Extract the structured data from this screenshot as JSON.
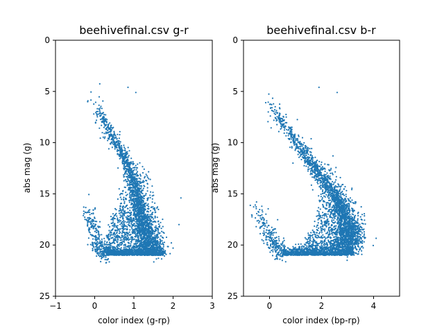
{
  "chart_data": [
    {
      "type": "scatter",
      "title": "beehivefinal.csv g-r",
      "xlabel": "color index (g-rp)",
      "ylabel": "abs mag (g)",
      "xlim": [
        -1,
        3
      ],
      "ylim": [
        25,
        0
      ],
      "y_inverted": true,
      "xticks": [
        -1,
        0,
        1,
        2,
        3
      ],
      "yticks": [
        0,
        5,
        10,
        15,
        20,
        25
      ],
      "grid": false,
      "color": "#1f77b4",
      "features": {
        "main_sequence": [
          [
            0.0,
            6.0
          ],
          [
            0.2,
            7.6
          ],
          [
            0.4,
            9.0
          ],
          [
            0.6,
            10.4
          ],
          [
            0.8,
            11.8
          ],
          [
            0.95,
            13.4
          ],
          [
            1.05,
            14.8
          ],
          [
            1.15,
            16.2
          ],
          [
            1.22,
            17.5
          ],
          [
            1.3,
            18.8
          ],
          [
            1.38,
            20.0
          ],
          [
            1.45,
            20.8
          ]
        ],
        "white_dwarf_branch": [
          [
            -0.2,
            16.0
          ],
          [
            -0.1,
            17.5
          ],
          [
            0.0,
            19.0
          ],
          [
            0.1,
            20.2
          ],
          [
            0.3,
            20.8
          ]
        ],
        "bottom_cutoff": 21.0,
        "outliers": [
          [
            0.85,
            4.6
          ],
          [
            1.05,
            5.1
          ],
          [
            2.2,
            15.4
          ],
          [
            2.15,
            18.0
          ],
          [
            2.0,
            20.3
          ]
        ]
      }
    },
    {
      "type": "scatter",
      "title": "beehivefinal.csv b-r",
      "xlabel": "color index (bp-rp)",
      "ylabel": "abs mag (g)",
      "xlim": [
        -1,
        5
      ],
      "ylim": [
        25,
        0
      ],
      "y_inverted": true,
      "xticks": [
        0,
        2,
        4
      ],
      "yticks": [
        0,
        5,
        10,
        15,
        20,
        25
      ],
      "grid": false,
      "color": "#1f77b4",
      "features": {
        "main_sequence": [
          [
            0.0,
            6.0
          ],
          [
            0.4,
            7.6
          ],
          [
            0.8,
            9.0
          ],
          [
            1.2,
            10.6
          ],
          [
            1.6,
            12.0
          ],
          [
            2.0,
            13.4
          ],
          [
            2.4,
            14.8
          ],
          [
            2.7,
            16.2
          ],
          [
            2.95,
            17.5
          ],
          [
            3.1,
            18.6
          ],
          [
            3.0,
            19.6
          ],
          [
            2.8,
            20.4
          ]
        ],
        "white_dwarf_branch": [
          [
            -0.6,
            16.0
          ],
          [
            -0.3,
            17.5
          ],
          [
            0.0,
            19.0
          ],
          [
            0.2,
            20.2
          ],
          [
            0.5,
            20.8
          ]
        ],
        "bottom_cutoff": 21.0,
        "outliers": [
          [
            1.9,
            4.6
          ],
          [
            2.6,
            5.1
          ],
          [
            3.5,
            18.5
          ],
          [
            0.9,
            12.0
          ]
        ]
      }
    }
  ]
}
